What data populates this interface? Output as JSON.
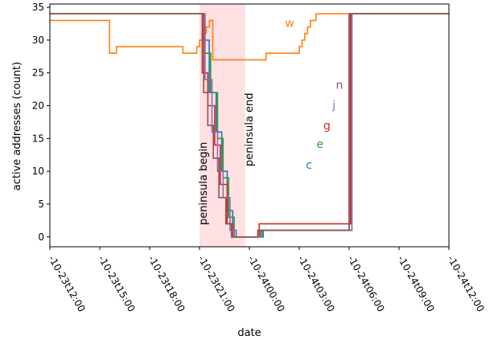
{
  "chart_data": {
    "type": "line",
    "xlabel": "date",
    "ylabel": "active addresses (count)",
    "ylim": [
      -1.5,
      35.5
    ],
    "xlim": [
      "2023-10-23T12:00",
      "2023-10-24T12:00"
    ],
    "x_tick_labels": [
      "-10-23t12:00",
      "-10-23t15:00",
      "-10-23t18:00",
      "-10-23t21:00",
      "-10-24t00:00",
      "-10-24t03:00",
      "-10-24t06:00",
      "-10-24t09:00",
      "-10-24t12:00"
    ],
    "y_ticks": [
      0,
      5,
      10,
      15,
      20,
      25,
      30,
      35
    ],
    "grid": false,
    "shaded_region": {
      "start": "2023-10-23T21:00",
      "end": "2023-10-23T23:45",
      "color": "#ffe0e3"
    },
    "annotations": [
      {
        "text": "peninsula begin",
        "x": "2023-10-23T21:00"
      },
      {
        "text": "peninsula end",
        "x": "2023-10-23T23:45"
      }
    ],
    "series": [
      {
        "name": "w",
        "color": "#ff7f0e",
        "label_pos": {
          "x": "2023-10-24T02:25",
          "y": 32
        },
        "points": [
          [
            "2023-10-23T12:00",
            33
          ],
          [
            "2023-10-23T15:35",
            28
          ],
          [
            "2023-10-23T16:00",
            29
          ],
          [
            "2023-10-23T20:00",
            28
          ],
          [
            "2023-10-23T20:50",
            29
          ],
          [
            "2023-10-23T21:00",
            30
          ],
          [
            "2023-10-23T21:12",
            31
          ],
          [
            "2023-10-23T21:24",
            32
          ],
          [
            "2023-10-23T21:36",
            33
          ],
          [
            "2023-10-23T21:48",
            27
          ],
          [
            "2023-10-24T01:00",
            28
          ],
          [
            "2023-10-24T03:00",
            29
          ],
          [
            "2023-10-24T03:10",
            30
          ],
          [
            "2023-10-24T03:20",
            31
          ],
          [
            "2023-10-24T03:30",
            32
          ],
          [
            "2023-10-24T03:40",
            33
          ],
          [
            "2023-10-24T04:00",
            34
          ],
          [
            "2023-10-24T12:00",
            34
          ]
        ]
      },
      {
        "name": "c",
        "color": "#1f77b4",
        "label_pos": {
          "x": "2023-10-24T03:35",
          "y": 10.4
        },
        "points": [
          [
            "2023-10-23T12:00",
            34
          ],
          [
            "2023-10-23T21:00",
            34
          ],
          [
            "2023-10-23T21:15",
            30
          ],
          [
            "2023-10-23T21:35",
            22
          ],
          [
            "2023-10-23T22:00",
            16
          ],
          [
            "2023-10-23T22:20",
            10
          ],
          [
            "2023-10-23T22:40",
            4
          ],
          [
            "2023-10-23T23:00",
            1
          ],
          [
            "2023-10-23T23:12",
            0
          ],
          [
            "2023-10-24T00:50",
            1
          ],
          [
            "2023-10-24T06:10",
            34
          ],
          [
            "2023-10-24T12:00",
            34
          ]
        ]
      },
      {
        "name": "e",
        "color": "#2ca02c",
        "label_pos": {
          "x": "2023-10-24T04:15",
          "y": 13.6
        },
        "points": [
          [
            "2023-10-23T12:00",
            34
          ],
          [
            "2023-10-23T21:00",
            34
          ],
          [
            "2023-10-23T21:18",
            28
          ],
          [
            "2023-10-23T21:40",
            22
          ],
          [
            "2023-10-23T22:05",
            15
          ],
          [
            "2023-10-23T22:25",
            9
          ],
          [
            "2023-10-23T22:45",
            3
          ],
          [
            "2023-10-23T23:05",
            0
          ],
          [
            "2023-10-24T00:40",
            1
          ],
          [
            "2023-10-24T06:00",
            34
          ],
          [
            "2023-10-24T12:00",
            34
          ]
        ]
      },
      {
        "name": "g",
        "color": "#d62728",
        "label_pos": {
          "x": "2023-10-24T04:40",
          "y": 16.4
        },
        "points": [
          [
            "2023-10-23T12:00",
            34
          ],
          [
            "2023-10-23T21:00",
            34
          ],
          [
            "2023-10-23T21:10",
            25
          ],
          [
            "2023-10-23T21:30",
            20
          ],
          [
            "2023-10-23T21:55",
            14
          ],
          [
            "2023-10-23T22:15",
            8
          ],
          [
            "2023-10-23T22:40",
            2
          ],
          [
            "2023-10-23T23:00",
            0
          ],
          [
            "2023-10-24T00:35",
            2
          ],
          [
            "2023-10-24T06:05",
            34
          ],
          [
            "2023-10-24T12:00",
            34
          ]
        ]
      },
      {
        "name": "j",
        "color": "#9467bd",
        "label_pos": {
          "x": "2023-10-24T05:05",
          "y": 19.5
        },
        "points": [
          [
            "2023-10-23T12:00",
            34
          ],
          [
            "2023-10-23T21:00",
            34
          ],
          [
            "2023-10-23T21:20",
            24
          ],
          [
            "2023-10-23T21:45",
            16
          ],
          [
            "2023-10-23T22:05",
            10
          ],
          [
            "2023-10-23T22:25",
            6
          ],
          [
            "2023-10-23T22:50",
            1
          ],
          [
            "2023-10-23T23:05",
            0
          ],
          [
            "2023-10-24T00:45",
            1
          ],
          [
            "2023-10-24T06:10",
            34
          ],
          [
            "2023-10-24T12:00",
            34
          ]
        ]
      },
      {
        "name": "n",
        "color": "#8c564b",
        "label_pos": {
          "x": "2023-10-24T05:25",
          "y": 22.6
        },
        "points": [
          [
            "2023-10-23T12:00",
            34
          ],
          [
            "2023-10-23T21:00",
            34
          ],
          [
            "2023-10-23T21:15",
            22
          ],
          [
            "2023-10-23T21:30",
            17
          ],
          [
            "2023-10-23T21:50",
            12
          ],
          [
            "2023-10-23T22:10",
            6
          ],
          [
            "2023-10-23T22:35",
            2
          ],
          [
            "2023-10-23T22:55",
            0
          ],
          [
            "2023-10-24T00:30",
            1
          ],
          [
            "2023-10-24T06:00",
            34
          ],
          [
            "2023-10-24T12:00",
            34
          ]
        ]
      }
    ]
  }
}
